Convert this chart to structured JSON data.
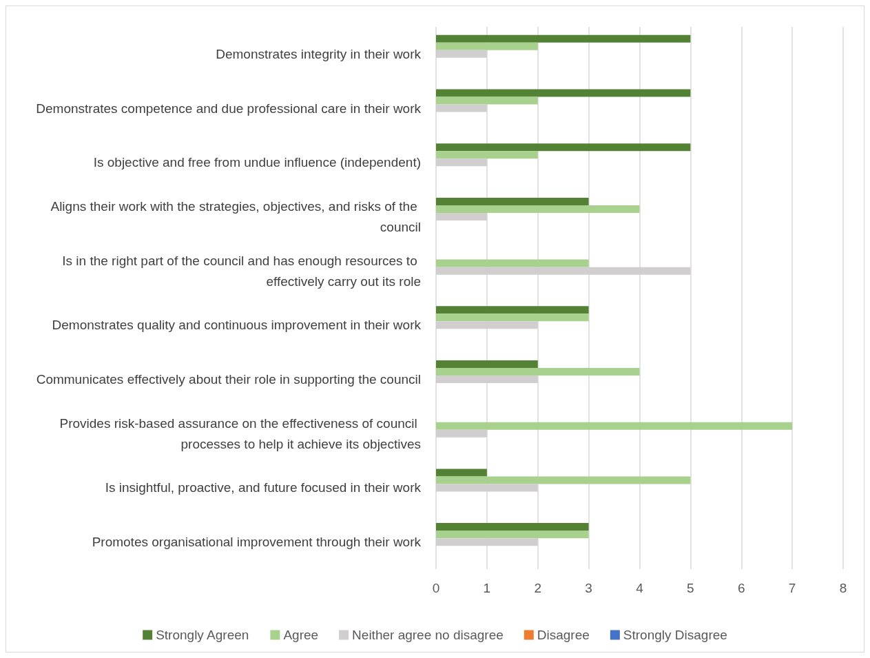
{
  "chart_data": {
    "type": "bar",
    "orientation": "horizontal",
    "categories": [
      "Demonstrates integrity in their work",
      "Demonstrates competence and due professional care in their work",
      "Is objective and free from undue influence (independent)",
      "Aligns their work with the strategies, objectives, and risks of the council",
      "Is in the right part of the council and has enough resources to effectively carry out its role",
      "Demonstrates quality and continuous improvement in their work",
      "Communicates effectively about their role in supporting the council",
      "Provides risk-based assurance on the effectiveness of council processes to help it achieve its objectives",
      "Is insightful, proactive, and future focused in their work",
      "Promotes organisational improvement through their work"
    ],
    "series": [
      {
        "name": "Strongly Agreen",
        "color": "#548235",
        "values": [
          5,
          5,
          5,
          3,
          0,
          3,
          2,
          0,
          1,
          3
        ]
      },
      {
        "name": "Agree",
        "color": "#a9d18e",
        "values": [
          2,
          2,
          2,
          4,
          3,
          3,
          4,
          7,
          5,
          3
        ]
      },
      {
        "name": "Neither agree no disagree",
        "color": "#d0cece",
        "values": [
          1,
          1,
          1,
          1,
          5,
          2,
          2,
          1,
          2,
          2
        ]
      },
      {
        "name": "Disagree",
        "color": "#ed7d31",
        "values": [
          0,
          0,
          0,
          0,
          0,
          0,
          0,
          0,
          0,
          0
        ]
      },
      {
        "name": "Strongly Disagree",
        "color": "#4472c4",
        "values": [
          0,
          0,
          0,
          0,
          0,
          0,
          0,
          0,
          0,
          0
        ]
      }
    ],
    "xlim": [
      0,
      8
    ],
    "xticks": [
      0,
      1,
      2,
      3,
      4,
      5,
      6,
      7,
      8
    ],
    "grid": "x",
    "legend": "bottom"
  }
}
